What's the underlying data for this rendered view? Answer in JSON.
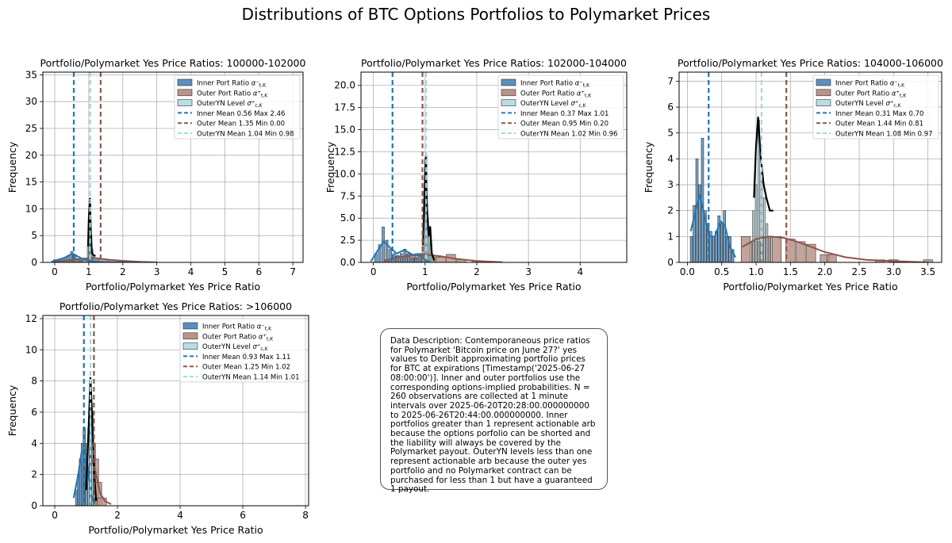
{
  "title": "Distributions of BTC Options Portfolios to Polymarket Prices",
  "description": "Data Description: Contemporaneous price ratios for Polymarket 'Bitcoin price on June 27?' yes values to Deribit approximating portfolio prices for BTC at expirations [Timestamp('2025-06-27 08:00:00')]. Inner and outer portfolios use the corresponding options-implied probabilities. N = 260 observations are collected at 1 minute intervals over 2025-06-20T20:28:00.000000000 to 2025-06-26T20:44:00.000000000. Inner portfolios greater than 1 represent actionable arb because the options porfolio can be shorted and the liability will always be covered by the Polymarket payout. OuterYN levels less than one represent actionable arb because the outer yes portfolio and no Polymarket contract can be purchased for less than 1 but have a guaranteed 1 payout.",
  "colors": {
    "inner": "#1f77b4",
    "inner_fill": "#5b8fbe",
    "outer": "#8c564b",
    "outer_fill": "#b8948a",
    "outeryn": "#9edae5",
    "outeryn_fill": "#b9dde6",
    "kde_outeryn": "#000000",
    "grid": "#b0b0b0"
  },
  "chart_data": [
    {
      "type": "histogram",
      "title": "Portfolio/Polymarket Yes Price Ratios: 100000-102000",
      "xlabel": "Portfolio/Polymarket Yes Price Ratio",
      "ylabel": "Frequency",
      "xlim": [
        -0.35,
        7.3
      ],
      "ylim": [
        0,
        35.5
      ],
      "xticks": [
        0,
        1,
        2,
        3,
        4,
        5,
        6,
        7
      ],
      "yticks": [
        0,
        5,
        10,
        15,
        20,
        25,
        30,
        35
      ],
      "legend_position": "upper right",
      "legend": [
        "Inner Port Ratio",
        "Outer Port Ratio",
        "OuterYN Level",
        "Inner Mean 0.56 Max 2.46",
        "Outer Mean 1.35 Min 0.00",
        "OuterYN Mean 1.04 Min 0.98"
      ],
      "means": {
        "inner": 0.56,
        "outer": 1.35,
        "outeryn": 1.04
      },
      "inner_bars": [
        [
          0.0,
          0.5
        ],
        [
          0.1,
          0.6
        ],
        [
          0.2,
          0.7
        ],
        [
          0.3,
          0.9
        ],
        [
          0.4,
          1.3
        ],
        [
          0.5,
          2.0
        ],
        [
          0.55,
          1.6
        ],
        [
          0.6,
          1.2
        ],
        [
          0.7,
          0.7
        ],
        [
          0.8,
          0.4
        ]
      ],
      "outer_bars": [
        [
          0.2,
          0.3
        ],
        [
          0.5,
          0.5
        ],
        [
          0.8,
          0.7
        ],
        [
          1.1,
          0.8
        ],
        [
          1.4,
          0.6
        ],
        [
          1.7,
          0.4
        ],
        [
          2.0,
          0.3
        ],
        [
          2.4,
          0.2
        ]
      ],
      "outeryn_bars": [
        [
          0.98,
          3.0
        ],
        [
          1.01,
          5.0
        ],
        [
          1.04,
          12.0
        ],
        [
          1.07,
          5.0
        ],
        [
          1.1,
          2.5
        ],
        [
          1.13,
          1.0
        ]
      ],
      "inner_kde": [
        [
          -0.1,
          0.1
        ],
        [
          0.1,
          0.5
        ],
        [
          0.3,
          0.9
        ],
        [
          0.5,
          1.6
        ],
        [
          0.6,
          1.4
        ],
        [
          0.8,
          0.7
        ],
        [
          1.0,
          0.3
        ],
        [
          1.5,
          0.05
        ],
        [
          2.4,
          0.0
        ]
      ],
      "outer_kde": [
        [
          0.0,
          0.1
        ],
        [
          0.4,
          0.4
        ],
        [
          0.8,
          0.7
        ],
        [
          1.2,
          0.8
        ],
        [
          1.6,
          0.5
        ],
        [
          2.0,
          0.3
        ],
        [
          2.5,
          0.1
        ],
        [
          3.0,
          0.02
        ]
      ],
      "outeryn_kde": [
        [
          0.98,
          3.0
        ],
        [
          1.0,
          8.0
        ],
        [
          1.03,
          11.8
        ],
        [
          1.06,
          6.0
        ],
        [
          1.09,
          2.0
        ],
        [
          1.12,
          1.5
        ],
        [
          1.15,
          1.3
        ],
        [
          1.2,
          1.2
        ]
      ]
    },
    {
      "type": "histogram",
      "title": "Portfolio/Polymarket Yes Price Ratios: 102000-104000",
      "xlabel": "Portfolio/Polymarket Yes Price Ratio",
      "ylabel": "Frequency",
      "xlim": [
        -0.24,
        4.9
      ],
      "ylim": [
        0,
        21.5
      ],
      "xticks": [
        0,
        1,
        2,
        3,
        4
      ],
      "yticks": [
        0.0,
        2.5,
        5.0,
        7.5,
        10.0,
        12.5,
        15.0,
        17.5,
        20.0
      ],
      "legend_position": "upper right",
      "legend": [
        "Inner Port Ratio",
        "Outer Port Ratio",
        "OuterYN Level",
        "Inner Mean 0.37 Max 1.01",
        "Outer Mean 0.95 Min 0.20",
        "OuterYN Mean 1.02 Min 0.96"
      ],
      "means": {
        "inner": 0.37,
        "outer": 0.95,
        "outeryn": 1.02
      },
      "inner_bars": [
        [
          0.05,
          1.0
        ],
        [
          0.12,
          2.0
        ],
        [
          0.19,
          4.0
        ],
        [
          0.26,
          2.5
        ],
        [
          0.33,
          1.5
        ],
        [
          0.4,
          1.0
        ],
        [
          0.47,
          0.8
        ],
        [
          0.54,
          1.0
        ],
        [
          0.61,
          1.5
        ],
        [
          0.68,
          1.0
        ],
        [
          0.75,
          0.5
        ],
        [
          0.82,
          0.5
        ],
        [
          0.89,
          1.0
        ],
        [
          0.96,
          0.7
        ]
      ],
      "outer_bars": [
        [
          0.3,
          0.3
        ],
        [
          0.5,
          0.7
        ],
        [
          0.7,
          0.9
        ],
        [
          0.9,
          1.0
        ],
        [
          1.1,
          0.8
        ],
        [
          1.3,
          0.6
        ],
        [
          1.5,
          0.9
        ],
        [
          1.7,
          0.3
        ],
        [
          2.0,
          0.2
        ]
      ],
      "outeryn_bars": [
        [
          0.96,
          2.0
        ],
        [
          0.99,
          8.0
        ],
        [
          1.02,
          12.0
        ],
        [
          1.05,
          5.0
        ],
        [
          1.08,
          4.0
        ],
        [
          1.11,
          2.0
        ]
      ],
      "inner_kde": [
        [
          -0.05,
          0.1
        ],
        [
          0.1,
          1.5
        ],
        [
          0.2,
          2.4
        ],
        [
          0.3,
          1.8
        ],
        [
          0.45,
          1.0
        ],
        [
          0.6,
          1.4
        ],
        [
          0.75,
          0.9
        ],
        [
          0.9,
          0.8
        ],
        [
          1.0,
          0.3
        ],
        [
          1.1,
          0.0
        ]
      ],
      "outer_kde": [
        [
          0.2,
          0.2
        ],
        [
          0.5,
          0.6
        ],
        [
          0.8,
          0.8
        ],
        [
          1.0,
          0.9
        ],
        [
          1.3,
          0.7
        ],
        [
          1.6,
          0.4
        ],
        [
          2.0,
          0.15
        ],
        [
          2.5,
          0.02
        ]
      ],
      "outeryn_kde": [
        [
          0.96,
          2.0
        ],
        [
          0.99,
          8.0
        ],
        [
          1.01,
          11.8
        ],
        [
          1.04,
          6.0
        ],
        [
          1.07,
          3.0
        ],
        [
          1.1,
          4.0
        ],
        [
          1.13,
          1.0
        ],
        [
          1.18,
          0.2
        ]
      ]
    },
    {
      "type": "histogram",
      "title": "Portfolio/Polymarket Yes Price Ratios: 104000-106000",
      "xlabel": "Portfolio/Polymarket Yes Price Ratio",
      "ylabel": "Frequency",
      "xlim": [
        -0.12,
        3.7
      ],
      "ylim": [
        0,
        7.35
      ],
      "xticks": [
        0.0,
        0.5,
        1.0,
        1.5,
        2.0,
        2.5,
        3.0,
        3.5
      ],
      "yticks": [
        0,
        1,
        2,
        3,
        4,
        5,
        6,
        7
      ],
      "legend_position": "upper right",
      "legend": [
        "Inner Port Ratio",
        "Outer Port Ratio",
        "OuterYN Level",
        "Inner Mean 0.31 Max 0.70",
        "Outer Mean 1.44 Min 0.81",
        "OuterYN Mean 1.08 Min 0.97"
      ],
      "means": {
        "inner": 0.31,
        "outer": 1.44,
        "outeryn": 1.08
      },
      "inner_bars": [
        [
          0.06,
          1.0
        ],
        [
          0.1,
          2.2
        ],
        [
          0.14,
          4.0
        ],
        [
          0.18,
          3.0
        ],
        [
          0.22,
          4.8
        ],
        [
          0.26,
          2.0
        ],
        [
          0.3,
          1.5
        ],
        [
          0.34,
          1.2
        ],
        [
          0.38,
          1.0
        ],
        [
          0.42,
          1.2
        ],
        [
          0.46,
          1.8
        ],
        [
          0.5,
          1.5
        ],
        [
          0.54,
          2.0
        ],
        [
          0.58,
          1.0
        ],
        [
          0.62,
          1.0
        ],
        [
          0.66,
          0.5
        ]
      ],
      "outer_bars": [
        [
          0.85,
          1.0
        ],
        [
          1.0,
          0.8
        ],
        [
          1.15,
          1.0
        ],
        [
          1.3,
          1.0
        ],
        [
          1.5,
          0.9
        ],
        [
          1.65,
          0.8
        ],
        [
          1.8,
          0.7
        ],
        [
          2.0,
          0.3
        ],
        [
          2.1,
          0.3
        ],
        [
          2.8,
          0.1
        ],
        [
          3.0,
          0.1
        ],
        [
          3.5,
          0.1
        ]
      ],
      "outeryn_bars": [
        [
          0.96,
          2.0
        ],
        [
          1.0,
          3.0
        ],
        [
          1.04,
          5.5
        ],
        [
          1.08,
          3.5
        ],
        [
          1.12,
          2.5
        ],
        [
          1.16,
          1.5
        ],
        [
          1.2,
          1.0
        ]
      ],
      "inner_kde": [
        [
          0.05,
          1.2
        ],
        [
          0.12,
          2.0
        ],
        [
          0.18,
          2.6
        ],
        [
          0.25,
          1.8
        ],
        [
          0.32,
          1.0
        ],
        [
          0.4,
          1.0
        ],
        [
          0.48,
          1.6
        ],
        [
          0.55,
          1.4
        ],
        [
          0.62,
          0.6
        ],
        [
          0.7,
          0.2
        ]
      ],
      "outer_kde": [
        [
          0.8,
          0.6
        ],
        [
          1.0,
          0.9
        ],
        [
          1.2,
          1.0
        ],
        [
          1.4,
          0.95
        ],
        [
          1.6,
          0.8
        ],
        [
          1.8,
          0.6
        ],
        [
          2.0,
          0.4
        ],
        [
          2.3,
          0.2
        ],
        [
          2.6,
          0.1
        ],
        [
          3.0,
          0.05
        ],
        [
          3.5,
          0.0
        ]
      ],
      "outeryn_kde": [
        [
          0.97,
          2.5
        ],
        [
          1.0,
          4.5
        ],
        [
          1.03,
          5.6
        ],
        [
          1.07,
          4.0
        ],
        [
          1.11,
          3.0
        ],
        [
          1.15,
          2.5
        ],
        [
          1.2,
          2.0
        ],
        [
          1.25,
          2.0
        ]
      ]
    },
    {
      "type": "histogram",
      "title": "Portfolio/Polymarket Yes Price Ratios: >106000",
      "xlabel": "Portfolio/Polymarket Yes Price Ratio",
      "ylabel": "Frequency",
      "xlim": [
        -0.38,
        8.1
      ],
      "ylim": [
        0,
        12.2
      ],
      "xticks": [
        0,
        2,
        4,
        6,
        8
      ],
      "yticks": [
        0,
        2,
        4,
        6,
        8,
        10,
        12
      ],
      "legend_position": "upper right",
      "legend": [
        "Inner Port Ratio",
        "Outer Port Ratio",
        "OuterYN Level",
        "Inner Mean 0.93 Max 1.11",
        "Outer Mean 1.25 Min 1.02",
        "OuterYN Mean 1.14 Min 1.01"
      ],
      "means": {
        "inner": 0.93,
        "outer": 1.25,
        "outeryn": 1.14
      },
      "inner_bars": [
        [
          0.7,
          1.0
        ],
        [
          0.76,
          2.0
        ],
        [
          0.82,
          3.0
        ],
        [
          0.88,
          4.0
        ],
        [
          0.94,
          5.0
        ],
        [
          1.0,
          3.0
        ],
        [
          1.06,
          2.0
        ]
      ],
      "outer_bars": [
        [
          1.05,
          2.5
        ],
        [
          1.15,
          4.0
        ],
        [
          1.25,
          3.0
        ],
        [
          1.35,
          1.5
        ],
        [
          1.5,
          0.5
        ]
      ],
      "outeryn_bars": [
        [
          1.02,
          2.0
        ],
        [
          1.08,
          5.0
        ],
        [
          1.14,
          8.0
        ],
        [
          1.2,
          6.0
        ],
        [
          1.26,
          3.0
        ]
      ],
      "inner_kde": [
        [
          0.6,
          0.5
        ],
        [
          0.75,
          2.0
        ],
        [
          0.85,
          3.4
        ],
        [
          0.95,
          3.6
        ],
        [
          1.05,
          2.5
        ],
        [
          1.15,
          0.8
        ],
        [
          1.25,
          0.1
        ]
      ],
      "outer_kde": [
        [
          1.0,
          1.0
        ],
        [
          1.15,
          3.2
        ],
        [
          1.3,
          2.2
        ],
        [
          1.45,
          0.8
        ],
        [
          1.6,
          0.3
        ],
        [
          1.8,
          0.1
        ]
      ],
      "outeryn_kde": [
        [
          1.0,
          1.0
        ],
        [
          1.08,
          5.0
        ],
        [
          1.14,
          8.2
        ],
        [
          1.2,
          5.5
        ],
        [
          1.26,
          2.0
        ],
        [
          1.32,
          0.3
        ]
      ]
    }
  ]
}
